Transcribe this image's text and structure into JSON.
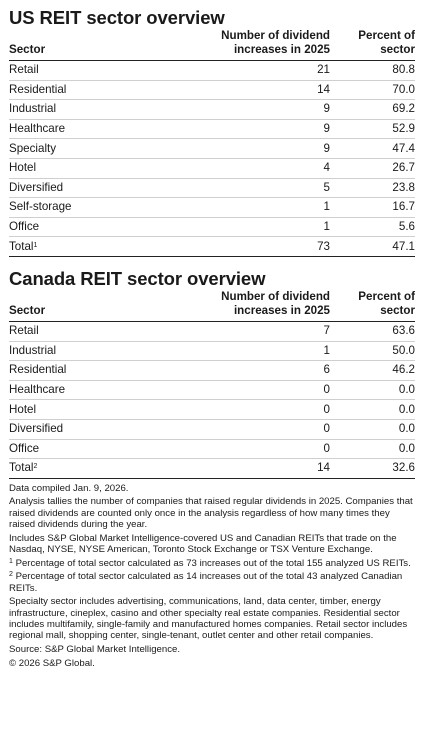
{
  "us": {
    "title": "US REIT sector overview",
    "headers": {
      "sector": "Sector",
      "increases": "Number of dividend\nincreases in 2025",
      "percent": "Percent of\nsector"
    },
    "rows": [
      {
        "sector": "Retail",
        "increases": "21",
        "percent": "80.8"
      },
      {
        "sector": "Residential",
        "increases": "14",
        "percent": "70.0"
      },
      {
        "sector": "Industrial",
        "increases": "9",
        "percent": "69.2"
      },
      {
        "sector": "Healthcare",
        "increases": "9",
        "percent": "52.9"
      },
      {
        "sector": "Specialty",
        "increases": "9",
        "percent": "47.4"
      },
      {
        "sector": "Hotel",
        "increases": "4",
        "percent": "26.7"
      },
      {
        "sector": "Diversified",
        "increases": "5",
        "percent": "23.8"
      },
      {
        "sector": "Self-storage",
        "increases": "1",
        "percent": "16.7"
      },
      {
        "sector": "Office",
        "increases": "1",
        "percent": "5.6"
      }
    ],
    "total": {
      "sector": "Total",
      "sup": "1",
      "increases": "73",
      "percent": "47.1"
    }
  },
  "canada": {
    "title": "Canada REIT sector overview",
    "headers": {
      "sector": "Sector",
      "increases": "Number of dividend\nincreases in 2025",
      "percent": "Percent of\nsector"
    },
    "rows": [
      {
        "sector": "Retail",
        "increases": "7",
        "percent": "63.6"
      },
      {
        "sector": "Industrial",
        "increases": "1",
        "percent": "50.0"
      },
      {
        "sector": "Residential",
        "increases": "6",
        "percent": "46.2"
      },
      {
        "sector": "Healthcare",
        "increases": "0",
        "percent": "0.0"
      },
      {
        "sector": "Hotel",
        "increases": "0",
        "percent": "0.0"
      },
      {
        "sector": "Diversified",
        "increases": "0",
        "percent": "0.0"
      },
      {
        "sector": "Office",
        "increases": "0",
        "percent": "0.0"
      }
    ],
    "total": {
      "sector": "Total",
      "sup": "2",
      "increases": "14",
      "percent": "32.6"
    }
  },
  "notes": {
    "compiled": "Data compiled Jan. 9, 2026.",
    "analysis": "Analysis tallies the number of companies that raised regular dividends in 2025. Companies that raised dividends are counted only once in the analysis regardless of how many times they raised dividends during the year.",
    "includes": "Includes S&P Global Market Intelligence-covered US and Canadian REITs that trade on the Nasdaq, NYSE, NYSE American, Toronto Stock Exchange or TSX Venture Exchange.",
    "footnote1_mark": "1",
    "footnote1": " Percentage of total sector calculated as 73 increases out of the total 155 analyzed US REITs.",
    "footnote2_mark": "2",
    "footnote2": " Percentage of total sector calculated as 14 increases out of the total 43 analyzed Canadian REITs.",
    "sectors": "Specialty sector includes advertising, communications, land, data center, timber, energy infrastructure, cineplex, casino and other specialty real estate companies. Residential sector includes multifamily, single-family and manufactured homes companies. Retail sector includes regional mall, shopping center, single-tenant, outlet center and other retail companies.",
    "source": "Source: S&P Global Market Intelligence.",
    "copyright": "© 2026 S&P Global."
  }
}
